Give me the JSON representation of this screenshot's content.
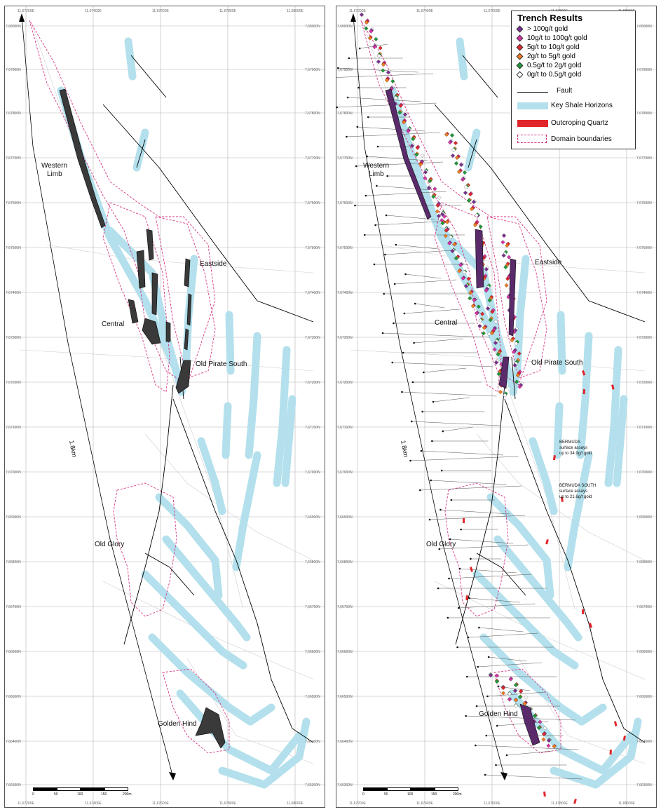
{
  "left_panel": {
    "labels": {
      "western": "Western",
      "limb": "Limb",
      "central": "Central",
      "eastside": "Eastside",
      "old_pirate_south": "Old Pirate South",
      "old_glory": "Old Glory",
      "golden_hind": "Golden Hind",
      "distance": "1.8km"
    },
    "scale": {
      "labels": [
        "0",
        "50",
        "100",
        "150",
        "200m"
      ]
    }
  },
  "right_panel": {
    "labels": {
      "western": "Western",
      "limb": "Limb",
      "central": "Central",
      "eastside": "Eastside",
      "old_pirate_south": "Old Pirate South",
      "old_glory": "Old Glory",
      "golden_hind": "Golden Hind",
      "distance": "1.8km"
    },
    "notes": {
      "bermuda_1": "BERMUDA",
      "bermuda_2": "surface assays",
      "bermuda_3": "up to 34.9g/t gold",
      "bermuda_south_1": "BERMUDA SOUTH",
      "bermuda_south_2": "surface assays",
      "bermuda_south_3": "up to 21.6g/t gold"
    },
    "scale": {
      "labels": [
        "0",
        "50",
        "100",
        "150",
        "200m"
      ]
    }
  },
  "legend": {
    "title": "Trench Results",
    "grades": [
      {
        "label": "> 100g/t gold",
        "color": "#7b2f8f"
      },
      {
        "label": "10g/t  to  100g/t gold",
        "color": "#d633a6"
      },
      {
        "label": "5g/t    to  10g/t gold",
        "color": "#e0262a"
      },
      {
        "label": "2g/t    to  5g/t gold",
        "color": "#f07d22"
      },
      {
        "label": "0.5g/t to  2g/t gold",
        "color": "#1f9a3a"
      },
      {
        "label": "0g/t    to  0.5g/t gold",
        "color": "#ffffff"
      }
    ],
    "fault": "Fault",
    "shale": "Key Shale Horizons",
    "quartz": "Outcroping Quartz",
    "domain": "Domain boundaries",
    "colors": {
      "shale": "#b3e0ec",
      "quartz": "#e0262a",
      "domain": "#d63384",
      "fault": "#000000"
    }
  },
  "grid_ticks": {
    "easting": [
      "11,67200E",
      "11,67400E",
      "11,67600E",
      "11,67800E",
      "11,68000E"
    ],
    "northing": [
      "7,68000N",
      "7,67900N",
      "7,67800N",
      "7,67700N",
      "7,67600N",
      "7,67500N",
      "7,67400N",
      "7,67300N",
      "7,67200N",
      "7,67100N",
      "7,67000N",
      "7,66900N",
      "7,66800N",
      "7,66700N",
      "7,66600N",
      "7,66500N",
      "7,66400N",
      "7,66300N"
    ]
  }
}
